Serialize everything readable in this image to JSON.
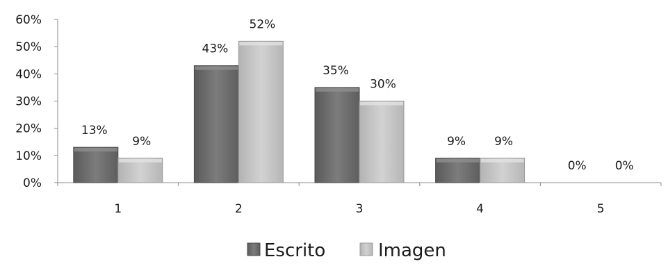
{
  "chart_data": {
    "type": "bar",
    "categories": [
      "1",
      "2",
      "3",
      "4",
      "5"
    ],
    "series": [
      {
        "name": "Escrito",
        "values": [
          13,
          43,
          35,
          9,
          0
        ],
        "color": "#6d6d6d"
      },
      {
        "name": "Imagen",
        "values": [
          9,
          52,
          30,
          9,
          0
        ],
        "color": "#c4c4c4"
      }
    ],
    "value_labels": [
      [
        "13%",
        "43%",
        "35%",
        "9%",
        "0%"
      ],
      [
        "9%",
        "52%",
        "30%",
        "9%",
        "0%"
      ]
    ],
    "yticks": [
      "0%",
      "10%",
      "20%",
      "30%",
      "40%",
      "50%",
      "60%"
    ],
    "ylim": [
      0,
      60
    ],
    "grid": false,
    "legend_position": "bottom",
    "title": "",
    "xlabel": "",
    "ylabel": ""
  }
}
